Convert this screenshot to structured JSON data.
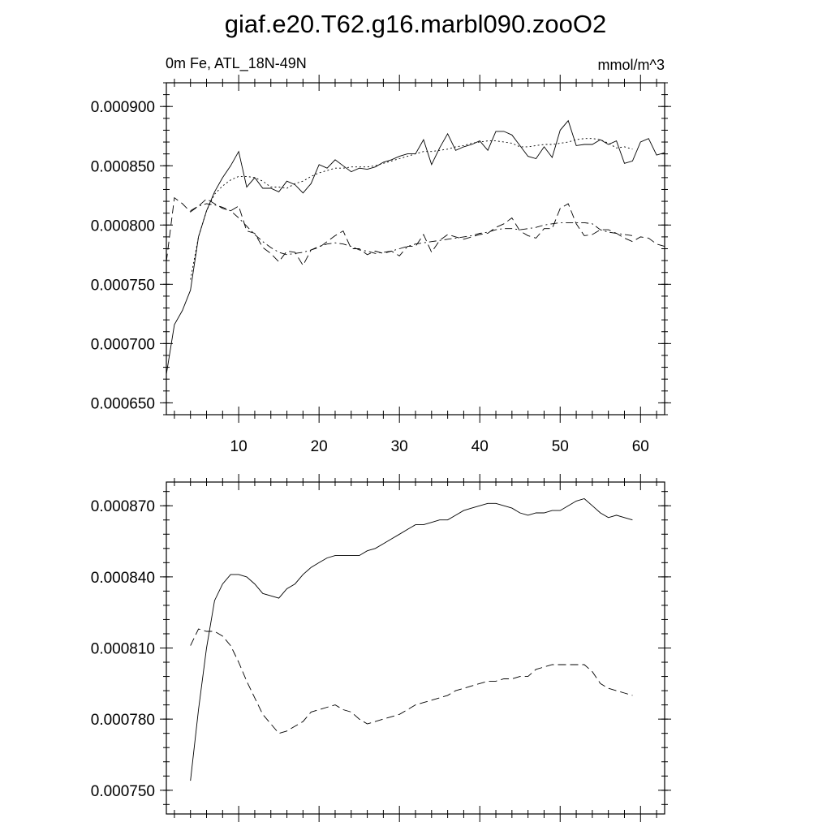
{
  "title": "giaf.e20.T62.g16.marbl090.zooO2",
  "chart_data": [
    {
      "type": "line",
      "left_label": "0m Fe, ATL_18N-49N",
      "right_label": "mmol/m^3",
      "xlim": [
        1,
        63
      ],
      "ylim": [
        0.00064,
        0.00092
      ],
      "x_ticks": [
        10,
        20,
        30,
        40,
        50,
        60
      ],
      "x_tick_labels": [
        "10",
        "20",
        "30",
        "40",
        "50",
        "60"
      ],
      "y_ticks": [
        0.00065,
        0.0007,
        0.00075,
        0.0008,
        0.00085,
        0.0009
      ],
      "y_tick_labels": [
        "0.000650",
        "0.000700",
        "0.000750",
        "0.000800",
        "0.000850",
        "0.000900"
      ],
      "series": [
        {
          "style": "solid",
          "x": [
            1,
            2,
            3,
            4,
            5,
            6,
            7,
            8,
            9,
            10,
            11,
            12,
            13,
            14,
            15,
            16,
            17,
            18,
            19,
            20,
            21,
            22,
            23,
            24,
            25,
            26,
            27,
            28,
            29,
            30,
            31,
            32,
            33,
            34,
            35,
            36,
            37,
            38,
            39,
            40,
            41,
            42,
            43,
            44,
            45,
            46,
            47,
            48,
            49,
            50,
            51,
            52,
            53,
            54,
            55,
            56,
            57,
            58,
            59,
            60,
            61,
            62,
            63
          ],
          "values": [
            0.000674,
            0.000716,
            0.000728,
            0.000745,
            0.00079,
            0.000812,
            0.000828,
            0.00084,
            0.00085,
            0.000862,
            0.000832,
            0.00084,
            0.000831,
            0.000831,
            0.000828,
            0.000837,
            0.000834,
            0.000827,
            0.000835,
            0.000851,
            0.000848,
            0.000855,
            0.00085,
            0.000845,
            0.000848,
            0.000847,
            0.000849,
            0.000853,
            0.000855,
            0.000858,
            0.00086,
            0.00086,
            0.000872,
            0.000851,
            0.000865,
            0.000877,
            0.000863,
            0.000866,
            0.000868,
            0.000871,
            0.000863,
            0.000879,
            0.000879,
            0.000876,
            0.000867,
            0.000858,
            0.000856,
            0.000866,
            0.000857,
            0.00088,
            0.000888,
            0.000867,
            0.000868,
            0.000868,
            0.000872,
            0.000868,
            0.000871,
            0.000852,
            0.000854,
            0.00087,
            0.000873,
            0.000859,
            0.000861
          ]
        },
        {
          "style": "dashed",
          "x": [
            1,
            2,
            3,
            4,
            5,
            6,
            7,
            8,
            9,
            10,
            11,
            12,
            13,
            14,
            15,
            16,
            17,
            18,
            19,
            20,
            21,
            22,
            23,
            24,
            25,
            26,
            27,
            28,
            29,
            30,
            31,
            32,
            33,
            34,
            35,
            36,
            37,
            38,
            39,
            40,
            41,
            42,
            43,
            44,
            45,
            46,
            47,
            48,
            49,
            50,
            51,
            52,
            53,
            54,
            55,
            56,
            57,
            58,
            59,
            60,
            61,
            62,
            63
          ],
          "values": [
            0.000769,
            0.000823,
            0.000818,
            0.000811,
            0.000816,
            0.000822,
            0.000818,
            0.000814,
            0.000812,
            0.000816,
            0.000795,
            0.000793,
            0.000781,
            0.000776,
            0.000769,
            0.000778,
            0.000777,
            0.000766,
            0.000779,
            0.000781,
            0.000786,
            0.000791,
            0.000795,
            0.00078,
            0.00078,
            0.000775,
            0.000778,
            0.000776,
            0.000778,
            0.000774,
            0.000782,
            0.000782,
            0.000792,
            0.000777,
            0.000787,
            0.000792,
            0.00079,
            0.000788,
            0.00079,
            0.000792,
            0.000793,
            0.000798,
            0.000801,
            0.000806,
            0.000795,
            0.000791,
            0.000789,
            0.000797,
            0.000797,
            0.000814,
            0.000818,
            0.000801,
            0.000791,
            0.000792,
            0.000796,
            0.000796,
            0.000793,
            0.000789,
            0.000786,
            0.00079,
            0.000789,
            0.000784,
            0.000782
          ]
        },
        {
          "style": "dotted",
          "x": [
            4,
            5,
            6,
            7,
            8,
            9,
            10,
            11,
            12,
            13,
            14,
            15,
            16,
            17,
            18,
            19,
            20,
            21,
            22,
            23,
            24,
            25,
            26,
            27,
            28,
            29,
            30,
            31,
            32,
            33,
            34,
            35,
            36,
            37,
            38,
            39,
            40,
            41,
            42,
            43,
            44,
            45,
            46,
            47,
            48,
            49,
            50,
            51,
            52,
            53,
            54,
            55,
            56,
            57,
            58,
            59
          ],
          "values": [
            0.000754,
            0.00079,
            0.000812,
            0.000826,
            0.000833,
            0.000838,
            0.000841,
            0.000841,
            0.00084,
            0.000837,
            0.000832,
            0.000832,
            0.000831,
            0.000835,
            0.000837,
            0.000841,
            0.000844,
            0.000846,
            0.000848,
            0.000848,
            0.000849,
            0.000849,
            0.000849,
            0.00085,
            0.000852,
            0.000854,
            0.000856,
            0.000858,
            0.00086,
            0.000862,
            0.000862,
            0.000863,
            0.000864,
            0.000866,
            0.000867,
            0.000869,
            0.00087,
            0.000871,
            0.000871,
            0.00087,
            0.000869,
            0.000866,
            0.000866,
            0.000867,
            0.000868,
            0.000868,
            0.000869,
            0.00087,
            0.000872,
            0.000873,
            0.000873,
            0.000872,
            0.000869,
            0.000865,
            0.000866,
            0.000864
          ]
        },
        {
          "style": "dash-dot",
          "x": [
            4,
            5,
            6,
            7,
            8,
            9,
            10,
            11,
            12,
            13,
            14,
            15,
            16,
            17,
            18,
            19,
            20,
            21,
            22,
            23,
            24,
            25,
            26,
            27,
            28,
            29,
            30,
            31,
            32,
            33,
            34,
            35,
            36,
            37,
            38,
            39,
            40,
            41,
            42,
            43,
            44,
            45,
            46,
            47,
            48,
            49,
            50,
            51,
            52,
            53,
            54,
            55,
            56,
            57,
            58,
            59
          ],
          "values": [
            0.000812,
            0.000816,
            0.000818,
            0.000817,
            0.000815,
            0.000812,
            0.000806,
            0.000799,
            0.000792,
            0.000786,
            0.000781,
            0.000777,
            0.000775,
            0.000776,
            0.000777,
            0.000779,
            0.000782,
            0.000784,
            0.000785,
            0.000784,
            0.000782,
            0.000779,
            0.000778,
            0.000776,
            0.000777,
            0.000778,
            0.00078,
            0.000782,
            0.000784,
            0.000785,
            0.000786,
            0.000787,
            0.000788,
            0.000789,
            0.00079,
            0.000791,
            0.000793,
            0.000794,
            0.000796,
            0.000797,
            0.000797,
            0.000796,
            0.000797,
            0.000798,
            0.0008,
            0.000801,
            0.000802,
            0.000802,
            0.000802,
            0.000802,
            0.000801,
            0.000796,
            0.000794,
            0.000793,
            0.000792,
            0.000791
          ]
        }
      ]
    },
    {
      "type": "line",
      "xlim": [
        1,
        63
      ],
      "ylim": [
        0.00074,
        0.00088
      ],
      "x_ticks": [
        10,
        20,
        30,
        40,
        50,
        60
      ],
      "y_ticks": [
        0.00075,
        0.00078,
        0.00081,
        0.00084,
        0.00087
      ],
      "y_tick_labels": [
        "0.000750",
        "0.000780",
        "0.000810",
        "0.000840",
        "0.000870"
      ],
      "series": [
        {
          "style": "solid",
          "x": [
            4,
            5,
            6,
            7,
            8,
            9,
            10,
            11,
            12,
            13,
            14,
            15,
            16,
            17,
            18,
            19,
            20,
            21,
            22,
            23,
            24,
            25,
            26,
            27,
            28,
            29,
            30,
            31,
            32,
            33,
            34,
            35,
            36,
            37,
            38,
            39,
            40,
            41,
            42,
            43,
            44,
            45,
            46,
            47,
            48,
            49,
            50,
            51,
            52,
            53,
            54,
            55,
            56,
            57,
            58,
            59
          ],
          "values": [
            0.000754,
            0.000784,
            0.00081,
            0.00083,
            0.000837,
            0.000841,
            0.000841,
            0.00084,
            0.000837,
            0.000833,
            0.000832,
            0.000831,
            0.000835,
            0.000837,
            0.000841,
            0.000844,
            0.000846,
            0.000848,
            0.000849,
            0.000849,
            0.000849,
            0.000849,
            0.000851,
            0.000852,
            0.000854,
            0.000856,
            0.000858,
            0.00086,
            0.000862,
            0.000862,
            0.000863,
            0.000864,
            0.000864,
            0.000866,
            0.000868,
            0.000869,
            0.00087,
            0.000871,
            0.000871,
            0.00087,
            0.000869,
            0.000867,
            0.000866,
            0.000867,
            0.000867,
            0.000868,
            0.000868,
            0.00087,
            0.000872,
            0.000873,
            0.00087,
            0.000867,
            0.000865,
            0.000866,
            0.000865,
            0.000864
          ]
        },
        {
          "style": "dashed",
          "x": [
            4,
            5,
            6,
            7,
            8,
            9,
            10,
            11,
            12,
            13,
            14,
            15,
            16,
            17,
            18,
            19,
            20,
            21,
            22,
            23,
            24,
            25,
            26,
            27,
            28,
            29,
            30,
            31,
            32,
            33,
            34,
            35,
            36,
            37,
            38,
            39,
            40,
            41,
            42,
            43,
            44,
            45,
            46,
            47,
            48,
            49,
            50,
            51,
            52,
            53,
            54,
            55,
            56,
            57,
            58,
            59
          ],
          "values": [
            0.000811,
            0.000818,
            0.000817,
            0.000817,
            0.000815,
            0.000811,
            0.000804,
            0.000796,
            0.000789,
            0.000782,
            0.000778,
            0.000774,
            0.000775,
            0.000777,
            0.000779,
            0.000783,
            0.000784,
            0.000785,
            0.000786,
            0.000784,
            0.000783,
            0.00078,
            0.000778,
            0.000779,
            0.00078,
            0.000781,
            0.000782,
            0.000784,
            0.000786,
            0.000787,
            0.000788,
            0.000789,
            0.00079,
            0.000792,
            0.000793,
            0.000794,
            0.000795,
            0.000796,
            0.000796,
            0.000797,
            0.000797,
            0.000798,
            0.000798,
            0.000801,
            0.000802,
            0.000803,
            0.000803,
            0.000803,
            0.000803,
            0.000803,
            0.0008,
            0.000795,
            0.000793,
            0.000792,
            0.000791,
            0.00079
          ]
        }
      ]
    }
  ]
}
